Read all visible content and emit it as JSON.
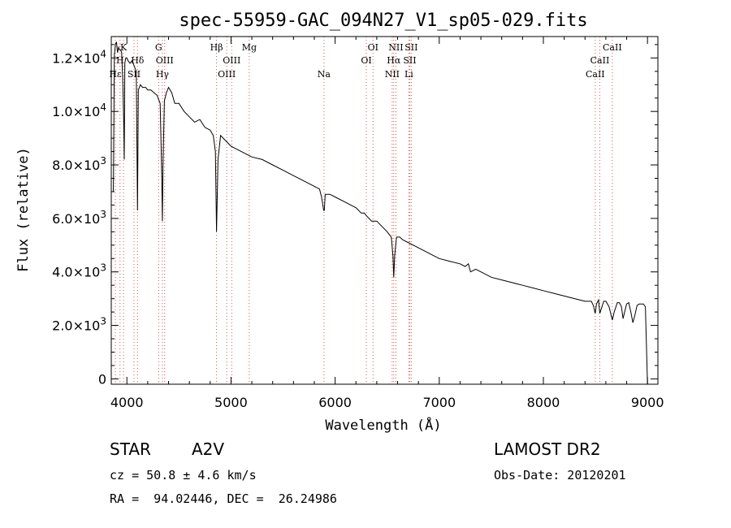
{
  "chart_data": {
    "type": "line",
    "title": "spec-55959-GAC_094N27_V1_sp05-029.fits",
    "xlabel": "Wavelength (Å)",
    "ylabel": "Flux (relative)",
    "xlim": [
      3850,
      9100
    ],
    "ylim": [
      -200,
      12800
    ],
    "xticks": [
      4000,
      5000,
      6000,
      7000,
      8000,
      9000
    ],
    "yticks": [
      {
        "value": 0,
        "mantissa": "0",
        "exp": ""
      },
      {
        "value": 2000,
        "mantissa": "2.0×10",
        "exp": "3"
      },
      {
        "value": 4000,
        "mantissa": "4.0×10",
        "exp": "3"
      },
      {
        "value": 6000,
        "mantissa": "6.0×10",
        "exp": "3"
      },
      {
        "value": 8000,
        "mantissa": "8.0×10",
        "exp": "3"
      },
      {
        "value": 10000,
        "mantissa": "1.0×10",
        "exp": "4"
      },
      {
        "value": 12000,
        "mantissa": "1.2×10",
        "exp": "4"
      }
    ],
    "series": [
      {
        "name": "flux",
        "x": [
          3870,
          3880,
          3890,
          3900,
          3910,
          3920,
          3930,
          3940,
          3950,
          3960,
          3970,
          3975,
          3980,
          3990,
          4000,
          4010,
          4030,
          4050,
          4070,
          4090,
          4102,
          4110,
          4130,
          4150,
          4180,
          4200,
          4230,
          4260,
          4290,
          4320,
          4335,
          4341,
          4347,
          4360,
          4380,
          4400,
          4430,
          4460,
          4500,
          4550,
          4600,
          4650,
          4700,
          4750,
          4800,
          4830,
          4850,
          4861,
          4875,
          4900,
          4950,
          5000,
          5050,
          5100,
          5150,
          5200,
          5300,
          5400,
          5500,
          5600,
          5700,
          5800,
          5850,
          5870,
          5890,
          5896,
          5905,
          5950,
          6000,
          6100,
          6200,
          6250,
          6280,
          6300,
          6350,
          6400,
          6450,
          6500,
          6540,
          6555,
          6563,
          6572,
          6590,
          6620,
          6650,
          6700,
          6800,
          6900,
          7000,
          7100,
          7200,
          7250,
          7280,
          7300,
          7350,
          7400,
          7500,
          7600,
          7700,
          7800,
          7900,
          8000,
          8100,
          8200,
          8300,
          8400,
          8460,
          8480,
          8498,
          8510,
          8530,
          8542,
          8555,
          8580,
          8600,
          8630,
          8662,
          8680,
          8710,
          8730,
          8750,
          8765,
          8780,
          8800,
          8820,
          8840,
          8860,
          8880,
          8900,
          8920,
          8940,
          8960,
          8980,
          9000
        ],
        "values": [
          7000,
          12100,
          12500,
          12600,
          12200,
          12400,
          12300,
          12300,
          12200,
          11200,
          9500,
          8200,
          11800,
          12000,
          12000,
          11900,
          11800,
          11900,
          11700,
          11500,
          6300,
          10800,
          11000,
          10900,
          10900,
          10800,
          10800,
          10700,
          10600,
          10300,
          7500,
          5900,
          8000,
          10400,
          10700,
          10900,
          10700,
          10300,
          10300,
          10000,
          9800,
          9600,
          9700,
          9400,
          9300,
          9100,
          8500,
          5500,
          8200,
          9100,
          8900,
          8700,
          8600,
          8500,
          8400,
          8300,
          8200,
          8000,
          7800,
          7600,
          7400,
          7200,
          7100,
          6800,
          6300,
          6300,
          6900,
          6900,
          6800,
          6600,
          6400,
          6200,
          6200,
          6100,
          5900,
          5900,
          5700,
          5500,
          5300,
          4600,
          3800,
          4600,
          5300,
          5300,
          5200,
          5100,
          4900,
          4700,
          4500,
          4400,
          4300,
          4200,
          4300,
          4000,
          4100,
          4000,
          3800,
          3700,
          3600,
          3500,
          3400,
          3300,
          3200,
          3100,
          3000,
          2900,
          2900,
          2750,
          2450,
          2800,
          2950,
          2450,
          2600,
          2900,
          2900,
          2700,
          2200,
          2500,
          2850,
          2850,
          2700,
          2250,
          2500,
          2800,
          2850,
          2500,
          2100,
          2400,
          2750,
          2800,
          2800,
          2800,
          2700,
          -200
        ]
      }
    ],
    "lines": [
      {
        "name": "Hε",
        "x": 3889,
        "label": "Hε",
        "row": 2
      },
      {
        "name": "H",
        "x": 3934,
        "label": "H",
        "row": 1
      },
      {
        "name": "K",
        "x": 3968,
        "label": "K",
        "row": 0
      },
      {
        "name": "Hδ",
        "x": 4102,
        "label": "Hδ",
        "row": 1
      },
      {
        "name": "SII",
        "x": 4068,
        "label": "SII",
        "row": 2
      },
      {
        "name": "Hγ",
        "x": 4341,
        "label": "Hγ",
        "row": 2
      },
      {
        "name": "G",
        "x": 4305,
        "label": "G",
        "row": 0
      },
      {
        "name": "OIII-4363",
        "x": 4363,
        "label": "OIII",
        "row": 1
      },
      {
        "name": "Hβ",
        "x": 4861,
        "label": "Hβ",
        "row": 0
      },
      {
        "name": "OIII-4959",
        "x": 4959,
        "label": "OIII",
        "row": 2
      },
      {
        "name": "OIII-5007",
        "x": 5007,
        "label": "OIII",
        "row": 1
      },
      {
        "name": "Mg",
        "x": 5175,
        "label": "Mg",
        "row": 0
      },
      {
        "name": "Na",
        "x": 5893,
        "label": "Na",
        "row": 2
      },
      {
        "name": "OI-6300",
        "x": 6300,
        "label": "OI",
        "row": 1
      },
      {
        "name": "OI-6364",
        "x": 6364,
        "label": "OI",
        "row": 0
      },
      {
        "name": "NII-6548",
        "x": 6548,
        "label": "NII",
        "row": 2
      },
      {
        "name": "Hα",
        "x": 6563,
        "label": "Hα",
        "row": 1
      },
      {
        "name": "NII-6584",
        "x": 6584,
        "label": "NII",
        "row": 0
      },
      {
        "name": "Li",
        "x": 6708,
        "label": "Li",
        "row": 2
      },
      {
        "name": "SII-6717",
        "x": 6717,
        "label": "SII",
        "row": 1
      },
      {
        "name": "SII-6731",
        "x": 6731,
        "label": "SII",
        "row": 0
      },
      {
        "name": "CaII-8498",
        "x": 8498,
        "label": "CaII",
        "row": 2
      },
      {
        "name": "CaII-8542",
        "x": 8542,
        "label": "CaII",
        "row": 1
      },
      {
        "name": "CaII-8662",
        "x": 8662,
        "label": "CaII",
        "row": 0
      }
    ]
  },
  "info": {
    "object_class": "STAR",
    "subclass": "A2V",
    "cz": "cz = 50.8 ± 4.6 km/s",
    "radec": "RA =  94.02446, DEC =  26.24986",
    "survey": "LAMOST DR2",
    "obs_date": "Obs-Date: 20120201"
  }
}
